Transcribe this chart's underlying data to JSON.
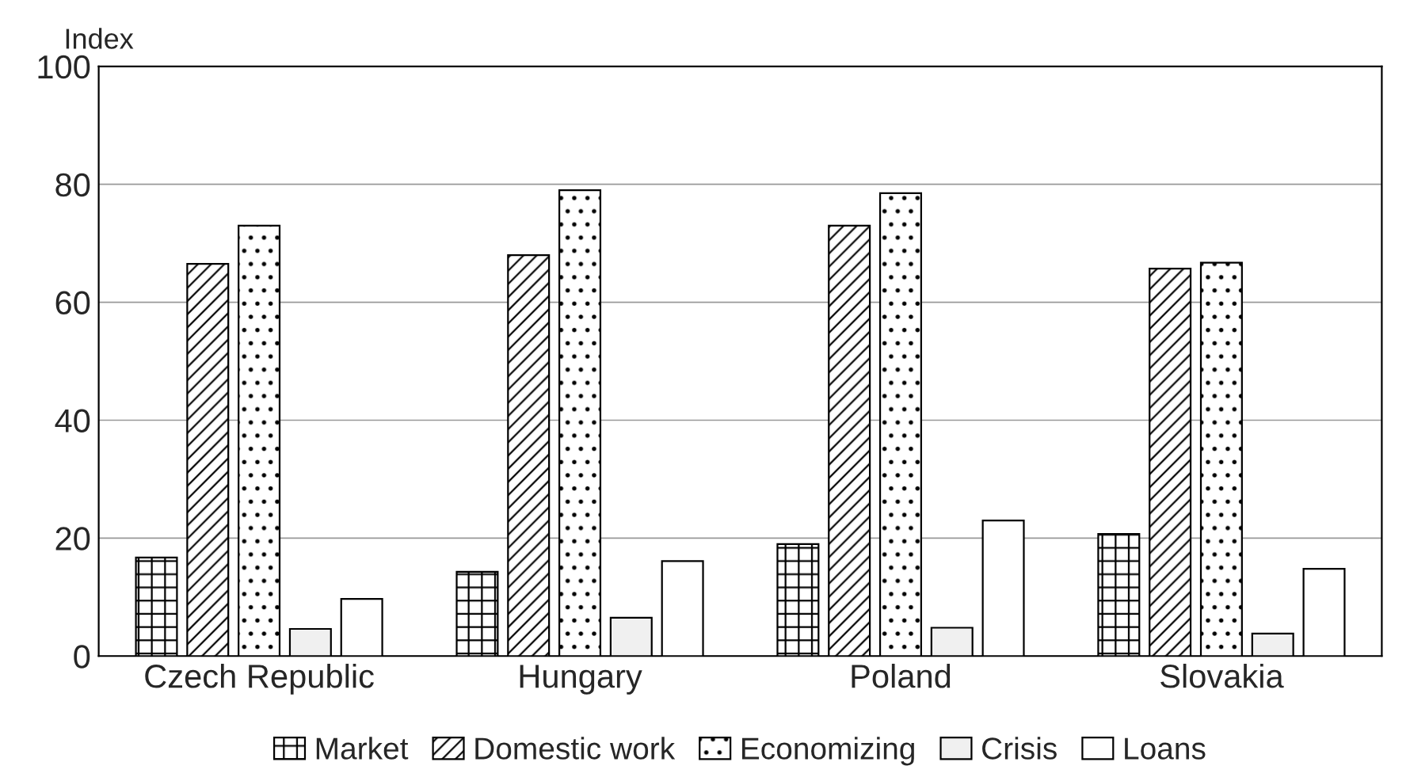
{
  "chart_data": {
    "type": "bar",
    "ylabel": "Index",
    "categories": [
      "Czech Republic",
      "Hungary",
      "Poland",
      "Slovakia"
    ],
    "series": [
      {
        "name": "Market",
        "color": "#000000",
        "values": [
          16.7,
          14.3,
          19,
          20.7
        ]
      },
      {
        "name": "Domestic work",
        "color": "#000000",
        "values": [
          66.5,
          68,
          73,
          65.7
        ]
      },
      {
        "name": "Economizing",
        "color": "#000000",
        "values": [
          73,
          79,
          78.5,
          66.7
        ]
      },
      {
        "name": "Crisis",
        "color": "#f0f0f0",
        "values": [
          4.6,
          6.5,
          4.8,
          3.8
        ]
      },
      {
        "name": "Loans",
        "color": "#ffffff",
        "values": [
          9.7,
          16.1,
          23,
          14.8
        ]
      }
    ],
    "ylim": [
      0,
      100
    ],
    "yticks": [
      0,
      20,
      40,
      60,
      80,
      100
    ],
    "grid": "y",
    "legend": "bottom"
  }
}
